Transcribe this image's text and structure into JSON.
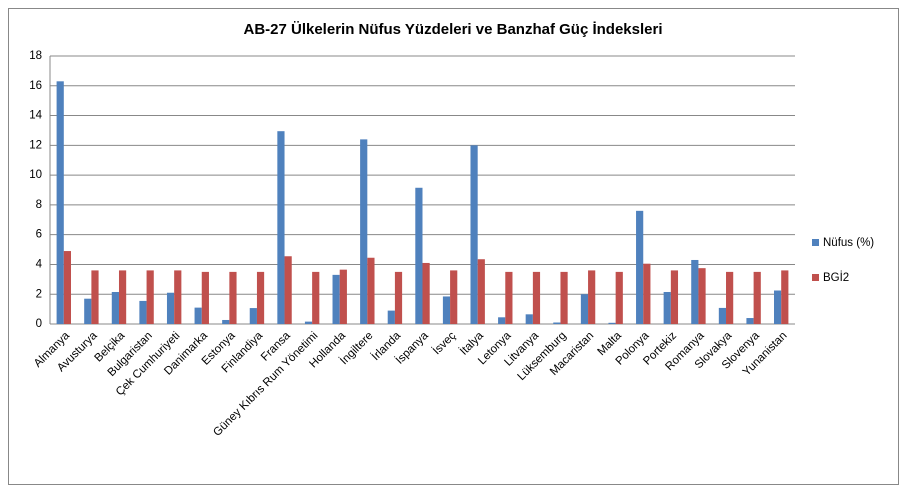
{
  "chart_data": {
    "type": "bar",
    "title": "AB-27 Ülkelerin Nüfus Yüzdeleri ve Banzhaf Güç İndeksleri",
    "categories": [
      "Almanya",
      "Avusturya",
      "Belçika",
      "Bulgaristan",
      "Çek Cumhuriyeti",
      "Danimarka",
      "Estonya",
      "Finlandiya",
      "Fransa",
      "Güney Kıbrıs Rum Yönetimi",
      "Hollanda",
      "İngiltere",
      "İrlanda",
      "İspanya",
      "İsveç",
      "İtalya",
      "Letonya",
      "Litvanya",
      "Lüksemburg",
      "Macaristan",
      "Malta",
      "Polonya",
      "Portekiz",
      "Romanya",
      "Slovakya",
      "Slovenya",
      "Yunanistan"
    ],
    "series": [
      {
        "name": "Nüfus (%)",
        "color": "#4f81bd",
        "values": [
          16.3,
          1.7,
          2.15,
          1.55,
          2.1,
          1.1,
          0.27,
          1.07,
          12.95,
          0.16,
          3.3,
          12.4,
          0.9,
          9.15,
          1.85,
          12.0,
          0.45,
          0.65,
          0.1,
          2.0,
          0.08,
          7.6,
          2.15,
          4.3,
          1.08,
          0.4,
          2.25
        ]
      },
      {
        "name": "BGİ2",
        "color": "#c0504d",
        "values": [
          4.9,
          3.6,
          3.6,
          3.6,
          3.6,
          3.5,
          3.5,
          3.5,
          4.55,
          3.5,
          3.65,
          4.45,
          3.5,
          4.1,
          3.6,
          4.35,
          3.5,
          3.5,
          3.5,
          3.6,
          3.5,
          4.05,
          3.6,
          3.75,
          3.5,
          3.5,
          3.6
        ]
      }
    ],
    "ylim": [
      0,
      18
    ],
    "yticks": [
      0,
      2,
      4,
      6,
      8,
      10,
      12,
      14,
      16,
      18
    ],
    "grid": true,
    "legend": "right"
  }
}
